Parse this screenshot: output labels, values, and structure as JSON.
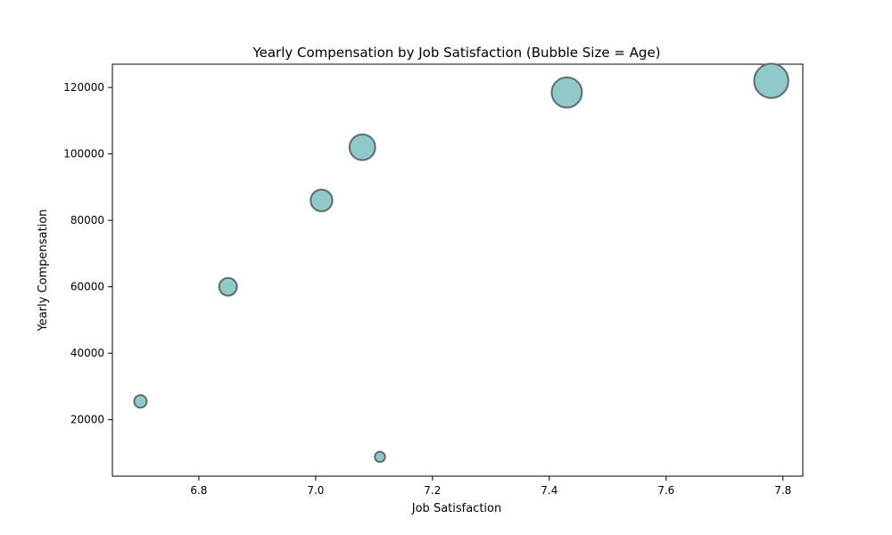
{
  "chart_data": {
    "type": "scatter",
    "title": "Yearly Compensation by Job Satisfaction (Bubble Size = Age)",
    "xlabel": "Job Satisfaction",
    "ylabel": "Yearly Compensation",
    "xlim": [
      6.652,
      7.834
    ],
    "ylim": [
      3000,
      127000
    ],
    "x_ticks": [
      6.8,
      7.0,
      7.2,
      7.4,
      7.6,
      7.8
    ],
    "x_tick_labels": [
      "6.8",
      "7.0",
      "7.2",
      "7.4",
      "7.6",
      "7.8"
    ],
    "y_ticks": [
      20000,
      40000,
      60000,
      80000,
      100000,
      120000
    ],
    "y_tick_labels": [
      "20000",
      "40000",
      "60000",
      "80000",
      "100000",
      "120000"
    ],
    "grid": false,
    "series": [
      {
        "points": [
          {
            "x": 6.7,
            "y": 25500,
            "size": 22
          },
          {
            "x": 6.85,
            "y": 60000,
            "size": 31
          },
          {
            "x": 7.01,
            "y": 86000,
            "size": 38
          },
          {
            "x": 7.08,
            "y": 102000,
            "size": 45
          },
          {
            "x": 7.11,
            "y": 8800,
            "size": 18
          },
          {
            "x": 7.43,
            "y": 118500,
            "size": 53
          },
          {
            "x": 7.78,
            "y": 122000,
            "size": 60
          }
        ]
      }
    ],
    "colors": {
      "fill": "#8fc9ca",
      "edge": "#5f6b6b"
    }
  }
}
